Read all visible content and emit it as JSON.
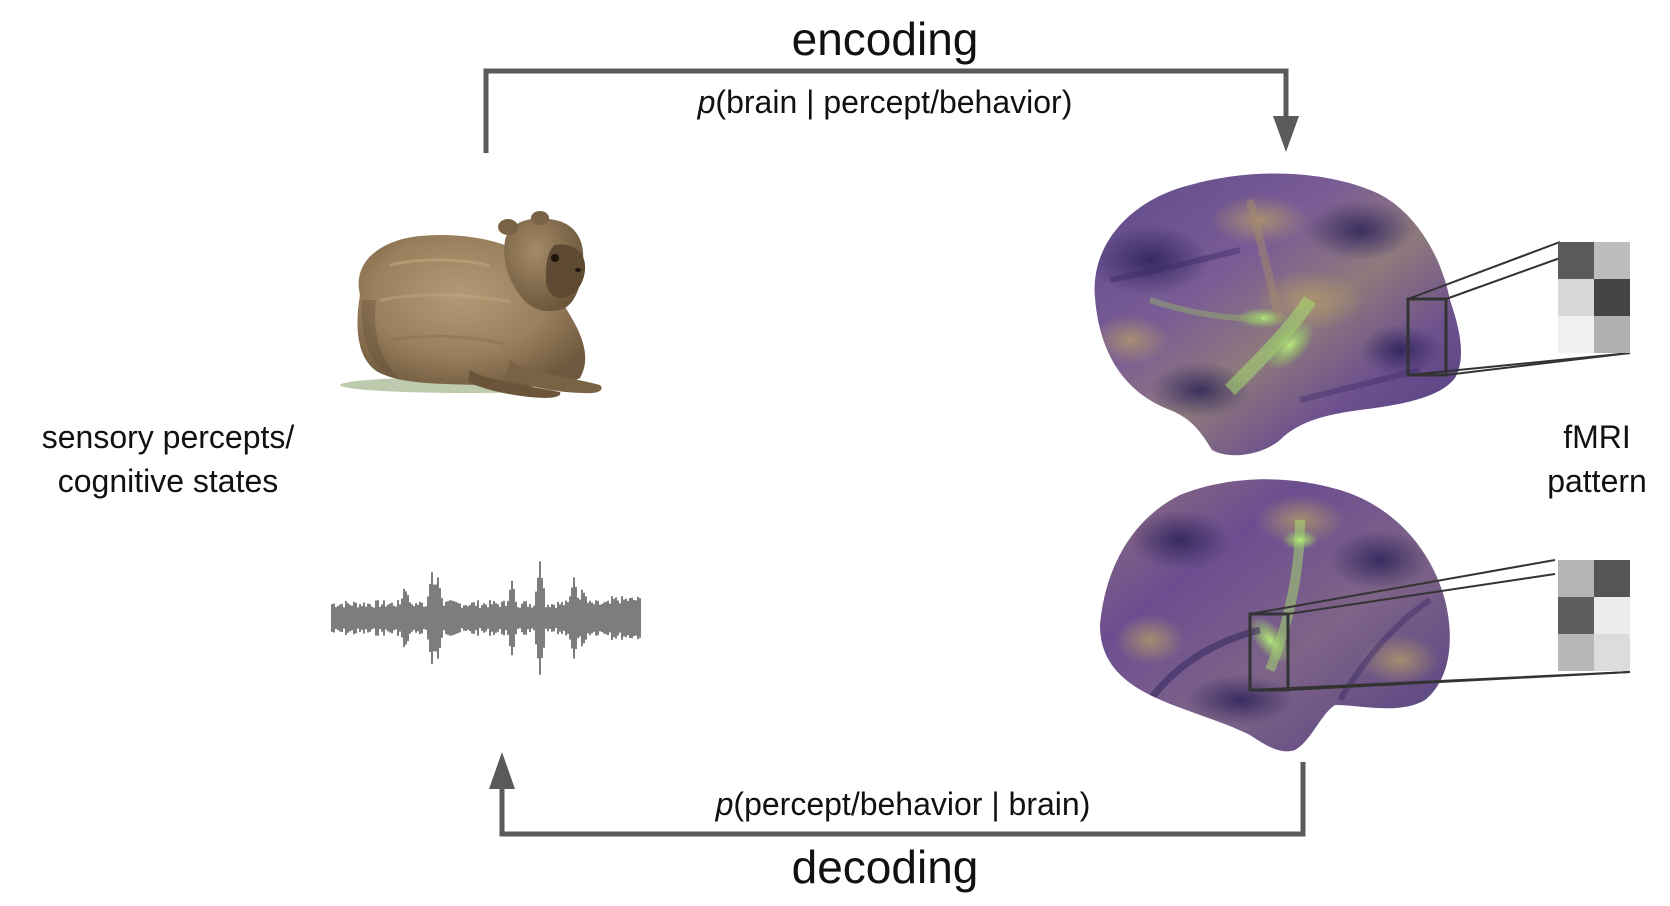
{
  "encoding": {
    "title": "encoding",
    "formula_prefix": "p",
    "formula_rest": "(brain | percept/behavior)"
  },
  "decoding": {
    "title": "decoding",
    "formula_prefix": "p",
    "formula_rest": "(percept/behavior | brain)"
  },
  "left_label": {
    "line1": "sensory percepts/",
    "line2": "cognitive states"
  },
  "right_label": {
    "line1": "fMRI",
    "line2": "pattern"
  },
  "stimuli": {
    "image": "capybara",
    "audio": "sound-waveform"
  },
  "colors": {
    "arrow": "#5a5a5a",
    "brain_base": "#6e4d93",
    "brain_dark": "#3a2b66",
    "brain_highlight": "#9bd96b",
    "brain_warm": "#a08a6a"
  },
  "fmri_patterns": {
    "top": [
      [
        "#5a5a5a",
        "#bdbdbd"
      ],
      [
        "#d8d8d8",
        "#444444"
      ],
      [
        "#f0f0f0",
        "#b0b0b0"
      ]
    ],
    "bottom": [
      [
        "#b4b4b4",
        "#555555"
      ],
      [
        "#5e5e5e",
        "#ececec"
      ],
      [
        "#b8b8b8",
        "#dcdcdc"
      ]
    ]
  }
}
